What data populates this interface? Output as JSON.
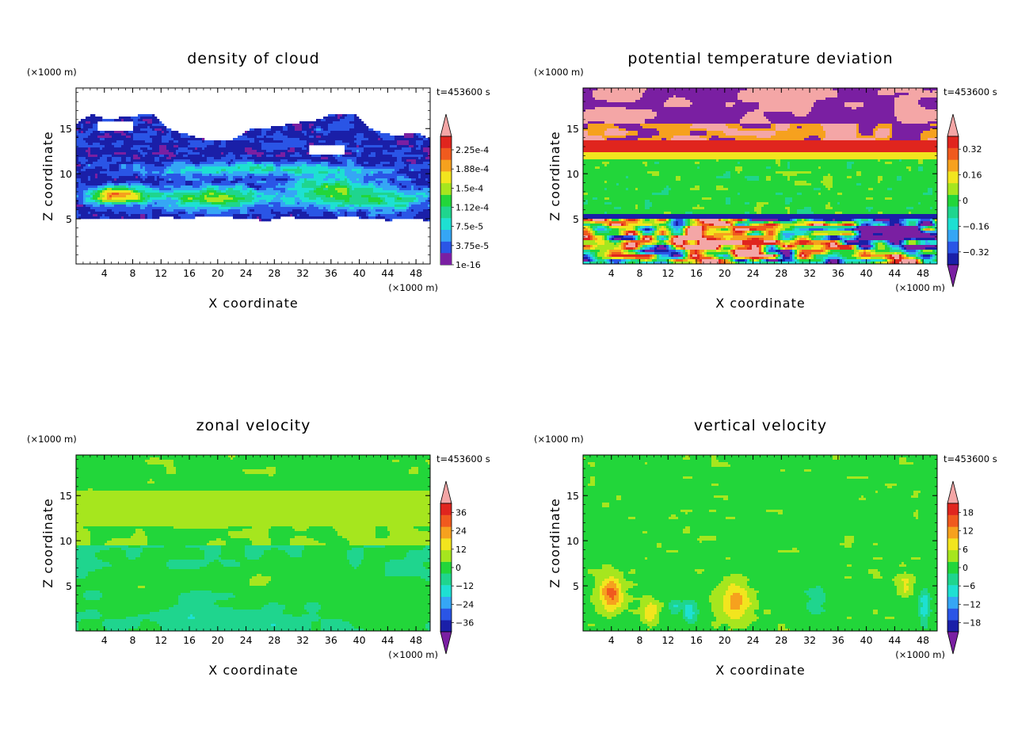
{
  "figure": {
    "colors": {
      "purple": "#7a1fa2",
      "darkblue": "#1a1fa8",
      "blue": "#2a55e6",
      "lightblue": "#35a6f5",
      "cyan": "#1ee0d2",
      "teal": "#1fd58e",
      "green": "#22d63a",
      "yellowgreen": "#a6e61e",
      "yellow": "#f2e51e",
      "orange": "#f6a11e",
      "darkorange": "#f05a1e",
      "red": "#e0251e",
      "pink": "#f4a6a6",
      "white": "#ffffff"
    }
  },
  "chart_data": [
    {
      "type": "heatmap",
      "title": "density of cloud",
      "xlabel": "X coordinate",
      "ylabel": "Z coordinate",
      "xunit": "(×1000 m)",
      "yunit": "(×1000 m)",
      "time_label": "t=453600 s",
      "xlim": [
        0,
        50
      ],
      "ylim": [
        0,
        19.5
      ],
      "xticks": [
        "4",
        "8",
        "12",
        "16",
        "20",
        "24",
        "28",
        "32",
        "36",
        "40",
        "44",
        "48"
      ],
      "yticks": [
        "5",
        "10",
        "15"
      ],
      "colorbar_labels": [
        "2.25e-4",
        "1.88e-4",
        "1.5e-4",
        "1.12e-4",
        "7.5e-5",
        "3.75e-5",
        "1e-16"
      ],
      "colorbar_range": [
        0,
        0.00025
      ],
      "field": "cloud",
      "grid": false
    },
    {
      "type": "heatmap",
      "title": "potential temperature deviation",
      "xlabel": "X coordinate",
      "ylabel": "Z coordinate",
      "xunit": "(×1000 m)",
      "yunit": "(×1000 m)",
      "time_label": "t=453600 s",
      "xlim": [
        0,
        50
      ],
      "ylim": [
        0,
        19.5
      ],
      "xticks": [
        "4",
        "8",
        "12",
        "16",
        "20",
        "24",
        "28",
        "32",
        "36",
        "40",
        "44",
        "48"
      ],
      "yticks": [
        "5",
        "10",
        "15"
      ],
      "colorbar_labels": [
        "0.32",
        "0.16",
        "0",
        "−0.16",
        "−0.32"
      ],
      "colorbar_range": [
        -0.4,
        0.4
      ],
      "field": "theta",
      "grid": false
    },
    {
      "type": "heatmap",
      "title": "zonal velocity",
      "xlabel": "X coordinate",
      "ylabel": "Z coordinate",
      "xunit": "(×1000 m)",
      "yunit": "(×1000 m)",
      "time_label": "t=453600 s",
      "xlim": [
        0,
        50
      ],
      "ylim": [
        0,
        19.5
      ],
      "xticks": [
        "4",
        "8",
        "12",
        "16",
        "20",
        "24",
        "28",
        "32",
        "36",
        "40",
        "44",
        "48"
      ],
      "yticks": [
        "5",
        "10",
        "15"
      ],
      "colorbar_labels": [
        "36",
        "24",
        "12",
        "0",
        "−12",
        "−24",
        "−36"
      ],
      "colorbar_range": [
        -42,
        42
      ],
      "field": "zonal",
      "grid": false
    },
    {
      "type": "heatmap",
      "title": "vertical velocity",
      "xlabel": "X coordinate",
      "ylabel": "Z coordinate",
      "xunit": "(×1000 m)",
      "yunit": "(×1000 m)",
      "time_label": "t=453600 s",
      "xlim": [
        0,
        50
      ],
      "ylim": [
        0,
        19.5
      ],
      "xticks": [
        "4",
        "8",
        "12",
        "16",
        "20",
        "24",
        "28",
        "32",
        "36",
        "40",
        "44",
        "48"
      ],
      "yticks": [
        "5",
        "10",
        "15"
      ],
      "colorbar_labels": [
        "18",
        "12",
        "6",
        "0",
        "−6",
        "−12",
        "−18"
      ],
      "colorbar_range": [
        -21,
        21
      ],
      "field": "vertical",
      "grid": false
    }
  ]
}
